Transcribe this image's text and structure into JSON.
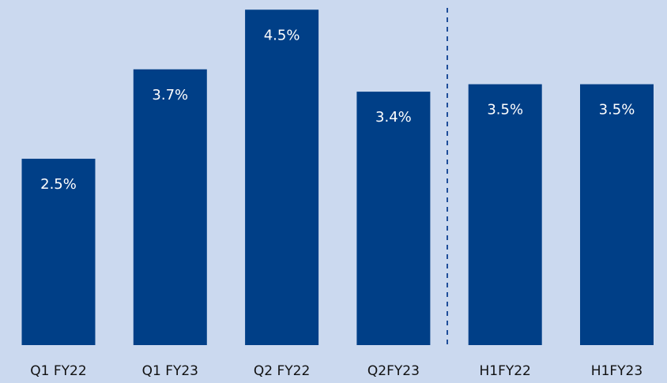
{
  "chart_data": {
    "type": "bar",
    "categories": [
      "Q1 FY22",
      "Q1 FY23",
      "Q2 FY22",
      "Q2FY23",
      "H1FY22",
      "H1FY23"
    ],
    "values": [
      2.5,
      3.7,
      4.5,
      3.4,
      3.5,
      3.5
    ],
    "value_labels": [
      "2.5%",
      "3.7%",
      "4.5%",
      "3.4%",
      "3.5%",
      "3.5%"
    ],
    "color": "#003f87",
    "ylim": [
      0,
      4.63
    ],
    "grid": false
  }
}
